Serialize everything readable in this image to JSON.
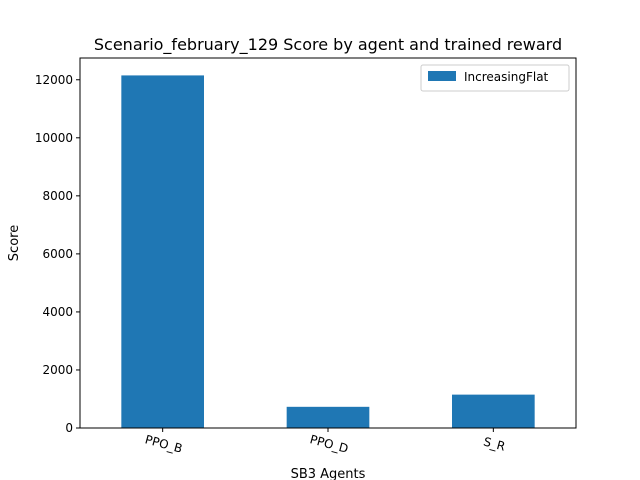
{
  "chart_data": {
    "type": "bar",
    "title": "Scenario_february_129 Score by agent and trained reward",
    "xlabel": "SB3 Agents",
    "ylabel": "Score",
    "categories": [
      "PPO_B",
      "PPO_D",
      "S_R"
    ],
    "series": [
      {
        "name": "IncreasingFlat",
        "values": [
          12150,
          730,
          1150
        ],
        "color": "#1f77b4"
      }
    ],
    "ylim": [
      0,
      12750
    ],
    "yticks": [
      0,
      2000,
      4000,
      6000,
      8000,
      10000,
      12000
    ],
    "ytick_labels": [
      "0",
      "2000",
      "4000",
      "6000",
      "8000",
      "10000",
      "12000"
    ],
    "grid": false,
    "legend_position": "top-right"
  }
}
